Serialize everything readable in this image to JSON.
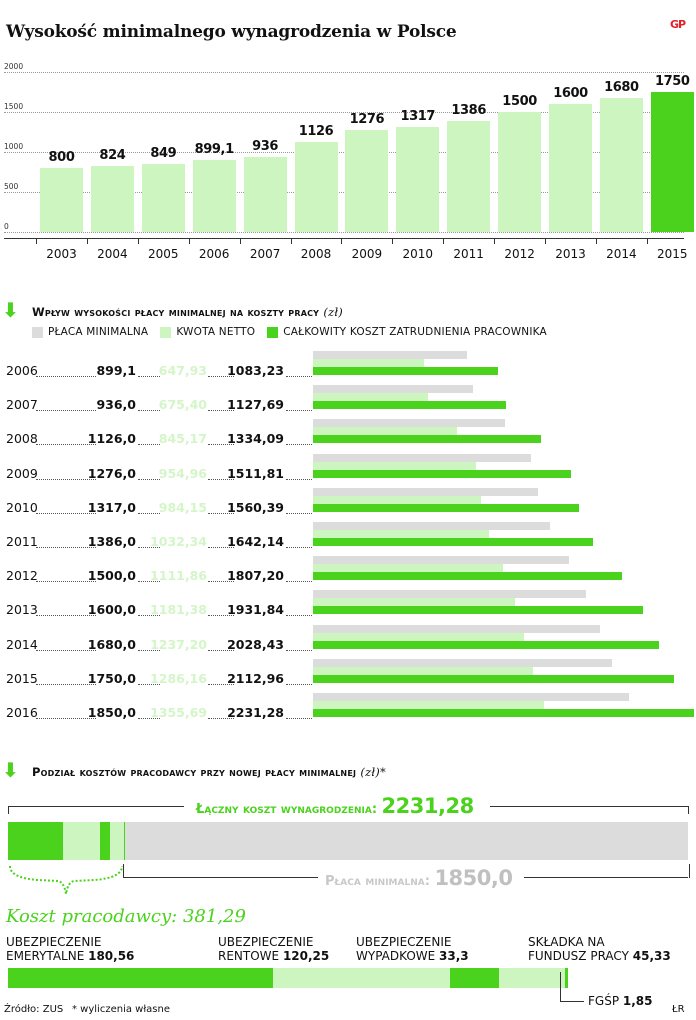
{
  "title": "Wysokość minimalnego wynagrodzenia w Polsce",
  "logo": "GP",
  "colors": {
    "light_green": "#ccf5bf",
    "bright_green": "#4ad21c",
    "grey": "#dcdcdc",
    "net_text": "#d4f5c8"
  },
  "chart_data": [
    {
      "type": "bar",
      "categories": [
        "2003",
        "2004",
        "2005",
        "2006",
        "2007",
        "2008",
        "2009",
        "2010",
        "2011",
        "2012",
        "2013",
        "2014",
        "2015"
      ],
      "values": [
        800,
        824,
        849,
        899.1,
        936,
        1126,
        1276,
        1317,
        1386,
        1500,
        1600,
        1680,
        1750
      ],
      "value_labels": [
        "800",
        "824",
        "849",
        "899,1",
        "936",
        "1126",
        "1276",
        "1317",
        "1386",
        "1500",
        "1600",
        "1680",
        "1750"
      ],
      "highlight_index": 12,
      "ylim": [
        0,
        2000
      ],
      "yticks": [
        "0",
        "500",
        "1000",
        "1500",
        "2000"
      ],
      "ytick_values": [
        0,
        500,
        1000,
        1500,
        2000
      ]
    },
    {
      "type": "bar",
      "orientation": "horizontal",
      "title": "Wpływ wysokości płacy minimalnej na koszty pracy",
      "unit": "(zł)",
      "categories": [
        "2006",
        "2007",
        "2008",
        "2009",
        "2010",
        "2011",
        "2012",
        "2013",
        "2014",
        "2015",
        "2016"
      ],
      "series": [
        {
          "name": "PŁACA MINIMALNA",
          "color": "#dcdcdc",
          "values": [
            899.1,
            936.0,
            1126.0,
            1276.0,
            1317.0,
            1386.0,
            1500.0,
            1600.0,
            1680.0,
            1750.0,
            1850.0
          ],
          "labels": [
            "899,1",
            "936,0",
            "1126,0",
            "1276,0",
            "1317,0",
            "1386,0",
            "1500,0",
            "1600,0",
            "1680,0",
            "1750,0",
            "1850,0"
          ]
        },
        {
          "name": "KWOTA NETTO",
          "color": "#ccf5bf",
          "values": [
            647.93,
            675.4,
            845.17,
            954.96,
            984.15,
            1032.34,
            1111.86,
            1181.38,
            1237.2,
            1286.16,
            1355.69
          ],
          "labels": [
            "647,93",
            "675,40",
            "845,17",
            "954,96",
            "984,15",
            "1032,34",
            "1111,86",
            "1181,38",
            "1237,20",
            "1286,16",
            "1355,69"
          ]
        },
        {
          "name": "CAŁKOWITY KOSZT ZATRUDNIENIA PRACOWNIKA",
          "color": "#4ad21c",
          "values": [
            1083.23,
            1127.69,
            1334.09,
            1511.81,
            1560.39,
            1642.14,
            1807.2,
            1931.84,
            2028.43,
            2112.96,
            2231.28
          ],
          "labels": [
            "1083,23",
            "1127,69",
            "1334,09",
            "1511,81",
            "1560,39",
            "1642,14",
            "1807,20",
            "1931,84",
            "2028,43",
            "2112,96",
            "2231,28"
          ]
        }
      ],
      "xlim": [
        0,
        2231.28
      ]
    },
    {
      "type": "bar",
      "orientation": "stacked-horizontal",
      "title": "Podział kosztów pracodawcy przy nowej płacy minimalnej",
      "unit": "(zł)*",
      "total_label": "Łączny koszt wynagrodzenia:",
      "total_value": "2231,28",
      "min_label": "Płaca minimalna:",
      "min_value": "1850,0",
      "employer_label": "Koszt pracodawcy: 381,29",
      "components": [
        {
          "name_line1": "UBEZPIECZENIE",
          "name_line2": "EMERYTALNE",
          "value": 180.56,
          "label": "180,56",
          "color": "#4ad21c"
        },
        {
          "name_line1": "UBEZPIECZENIE",
          "name_line2": "RENTOWE",
          "value": 120.25,
          "label": "120,25",
          "color": "#ccf5bf"
        },
        {
          "name_line1": "UBEZPIECZENIE",
          "name_line2": "WYPADKOWE",
          "value": 33.3,
          "label": "33,3",
          "color": "#4ad21c"
        },
        {
          "name_line1": "SKŁADKA NA",
          "name_line2": "FUNDUSZ PRACY",
          "value": 45.33,
          "label": "45,33",
          "color": "#ccf5bf"
        },
        {
          "name_line1": "FGŚP",
          "name_line2": "",
          "value": 1.85,
          "label": "1,85",
          "color": "#4ad21c"
        }
      ]
    }
  ],
  "footer": {
    "source": "Źródło: ZUS",
    "note": "* wyliczenia własne",
    "author": "ŁR"
  }
}
